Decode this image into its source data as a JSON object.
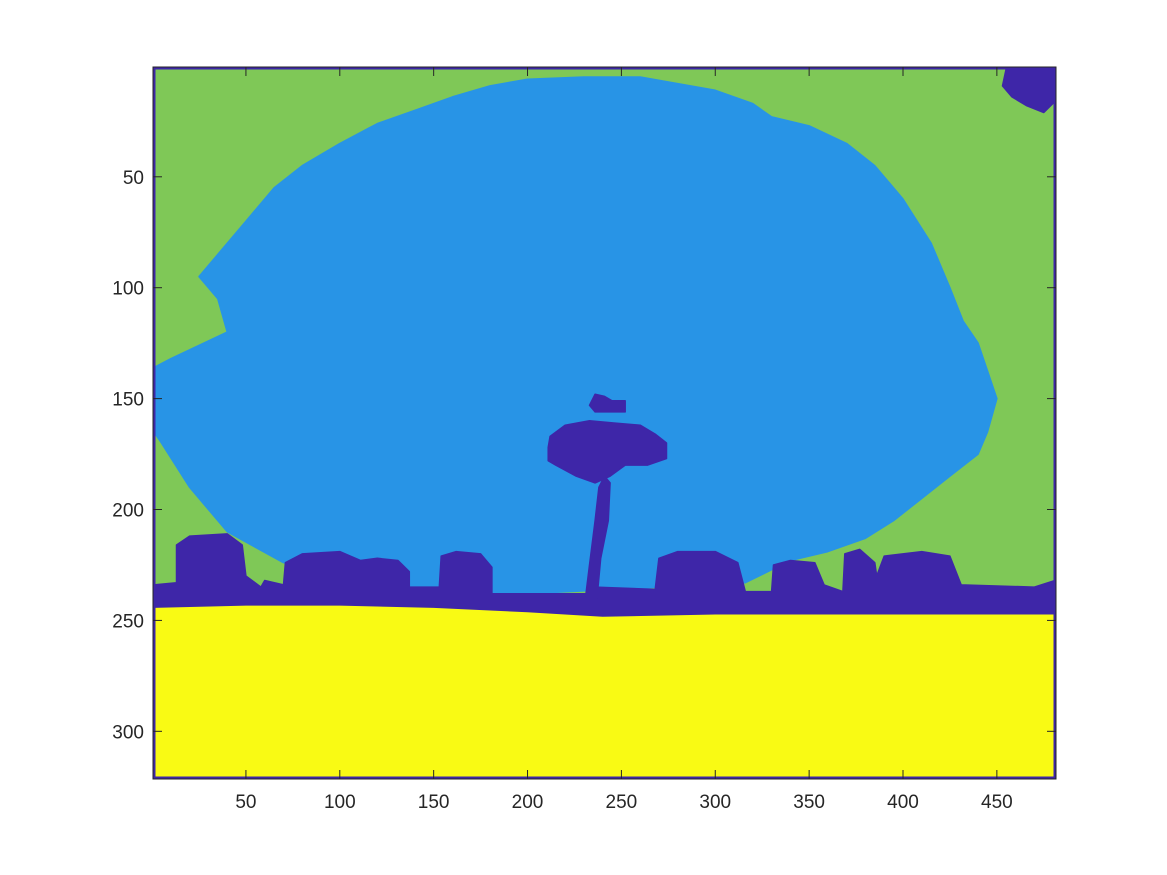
{
  "chart_data": {
    "type": "heatmap",
    "subtype": "segmentation-label-map",
    "title": "",
    "xlabel": "",
    "ylabel": "",
    "xlim": [
      0.5,
      481.5
    ],
    "ylim": [
      0.5,
      321.5
    ],
    "y_direction": "reverse",
    "x_ticks": [
      50,
      100,
      150,
      200,
      250,
      300,
      350,
      400,
      450
    ],
    "y_ticks": [
      50,
      100,
      150,
      200,
      250,
      300
    ],
    "grid": false,
    "legend": "none",
    "colorbar": false,
    "class_colors": {
      "1": "#3E26A8",
      "2": "#2894E6",
      "3": "#7FC857",
      "4": "#F9FA14"
    },
    "regions": [
      {
        "label": 4,
        "name": "ground",
        "points": [
          [
            1,
            244
          ],
          [
            50,
            243
          ],
          [
            100,
            243
          ],
          [
            150,
            244
          ],
          [
            200,
            246
          ],
          [
            240,
            248
          ],
          [
            300,
            247
          ],
          [
            350,
            247
          ],
          [
            400,
            247
          ],
          [
            481,
            247
          ],
          [
            481,
            321
          ],
          [
            1,
            321
          ]
        ]
      },
      {
        "label": 1,
        "name": "treeline",
        "points": [
          [
            1,
            234
          ],
          [
            13,
            233
          ],
          [
            13,
            216
          ],
          [
            20,
            212
          ],
          [
            40,
            211
          ],
          [
            48,
            216
          ],
          [
            50,
            230
          ],
          [
            58,
            235
          ],
          [
            60,
            232
          ],
          [
            70,
            234
          ],
          [
            71,
            224
          ],
          [
            80,
            220
          ],
          [
            100,
            219
          ],
          [
            111,
            223
          ],
          [
            120,
            222
          ],
          [
            131,
            223
          ],
          [
            137,
            228
          ],
          [
            137,
            235
          ],
          [
            153,
            235
          ],
          [
            154,
            221
          ],
          [
            162,
            219
          ],
          [
            175,
            220
          ],
          [
            181,
            226
          ],
          [
            181,
            238
          ],
          [
            235,
            238
          ],
          [
            236,
            235
          ],
          [
            268,
            236
          ],
          [
            270,
            222
          ],
          [
            280,
            219
          ],
          [
            300,
            219
          ],
          [
            312,
            224
          ],
          [
            316,
            237
          ],
          [
            330,
            237
          ],
          [
            331,
            225
          ],
          [
            340,
            223
          ],
          [
            353,
            224
          ],
          [
            358,
            234
          ],
          [
            368,
            237
          ],
          [
            369,
            220
          ],
          [
            377,
            218
          ],
          [
            385,
            224
          ],
          [
            386,
            230
          ],
          [
            390,
            221
          ],
          [
            410,
            219
          ],
          [
            425,
            221
          ],
          [
            431,
            234
          ],
          [
            470,
            235
          ],
          [
            481,
            232
          ],
          [
            481,
            247
          ],
          [
            400,
            247
          ],
          [
            350,
            247
          ],
          [
            300,
            247
          ],
          [
            240,
            248
          ],
          [
            200,
            246
          ],
          [
            150,
            244
          ],
          [
            100,
            243
          ],
          [
            50,
            243
          ],
          [
            1,
            244
          ]
        ]
      },
      {
        "label": 1,
        "name": "tree-trunk",
        "points": [
          [
            231,
            239
          ],
          [
            233,
            225
          ],
          [
            236,
            205
          ],
          [
            238,
            190
          ],
          [
            241,
            185
          ],
          [
            244,
            188
          ],
          [
            243,
            205
          ],
          [
            239,
            222
          ],
          [
            237,
            240
          ]
        ]
      },
      {
        "label": 1,
        "name": "tree-canopy",
        "points": [
          [
            211,
            172
          ],
          [
            212,
            167
          ],
          [
            220,
            162
          ],
          [
            233,
            160
          ],
          [
            246,
            161
          ],
          [
            260,
            162
          ],
          [
            268,
            166
          ],
          [
            274,
            170
          ],
          [
            274,
            177
          ],
          [
            264,
            180
          ],
          [
            252,
            180
          ],
          [
            244,
            185
          ],
          [
            236,
            188
          ],
          [
            226,
            185
          ],
          [
            215,
            180
          ],
          [
            211,
            178
          ]
        ]
      },
      {
        "label": 1,
        "name": "tree-top-fragment",
        "points": [
          [
            233,
            153
          ],
          [
            236,
            148
          ],
          [
            241,
            149
          ],
          [
            245,
            151
          ],
          [
            252,
            151
          ],
          [
            252,
            156
          ],
          [
            243,
            156
          ],
          [
            236,
            156
          ]
        ]
      },
      {
        "label": 1,
        "name": "top-right-corner",
        "points": [
          [
            455,
            1
          ],
          [
            481,
            1
          ],
          [
            481,
            16
          ],
          [
            475,
            21
          ],
          [
            466,
            18
          ],
          [
            458,
            14
          ],
          [
            453,
            9
          ]
        ]
      },
      {
        "label": 2,
        "name": "sky",
        "points": [
          [
            1,
            136
          ],
          [
            10,
            132
          ],
          [
            30,
            124
          ],
          [
            40,
            120
          ],
          [
            35,
            105
          ],
          [
            25,
            95
          ],
          [
            35,
            85
          ],
          [
            50,
            70
          ],
          [
            65,
            55
          ],
          [
            80,
            45
          ],
          [
            100,
            35
          ],
          [
            120,
            26
          ],
          [
            140,
            20
          ],
          [
            160,
            14
          ],
          [
            180,
            9
          ],
          [
            200,
            6
          ],
          [
            230,
            5
          ],
          [
            260,
            5
          ],
          [
            280,
            8
          ],
          [
            300,
            11
          ],
          [
            320,
            17
          ],
          [
            330,
            23
          ],
          [
            350,
            27
          ],
          [
            370,
            35
          ],
          [
            385,
            45
          ],
          [
            400,
            60
          ],
          [
            415,
            80
          ],
          [
            425,
            100
          ],
          [
            432,
            115
          ],
          [
            440,
            125
          ],
          [
            450,
            150
          ],
          [
            445,
            165
          ],
          [
            440,
            175
          ],
          [
            425,
            185
          ],
          [
            410,
            195
          ],
          [
            395,
            205
          ],
          [
            380,
            213
          ],
          [
            360,
            219
          ],
          [
            340,
            223
          ],
          [
            316,
            233
          ],
          [
            200,
            238
          ],
          [
            140,
            236
          ],
          [
            120,
            232
          ],
          [
            90,
            228
          ],
          [
            70,
            224
          ],
          [
            40,
            210
          ],
          [
            20,
            190
          ],
          [
            5,
            170
          ],
          [
            1,
            165
          ]
        ]
      }
    ]
  }
}
